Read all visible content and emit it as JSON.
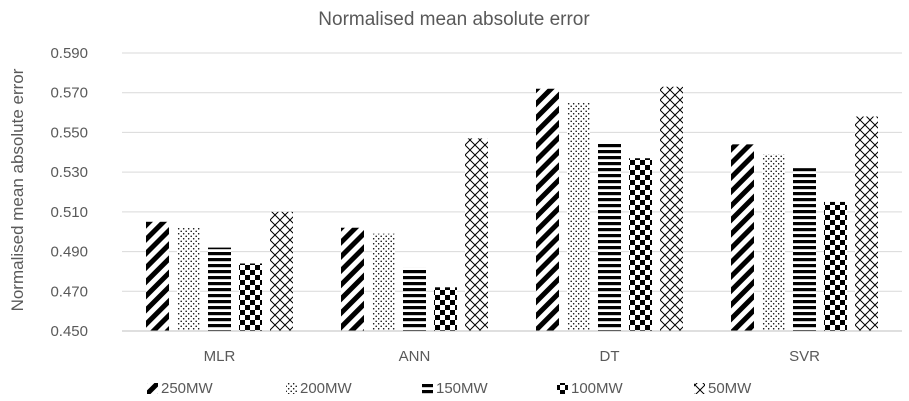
{
  "chart_data": {
    "type": "bar",
    "title": "Normalised mean absolute error",
    "xlabel": "",
    "ylabel": "Normalised mean absolute error",
    "ylim": [
      0.45,
      0.59
    ],
    "yticks": [
      "0.450",
      "0.470",
      "0.490",
      "0.510",
      "0.530",
      "0.550",
      "0.570",
      "0.590"
    ],
    "grid": true,
    "legend_position": "bottom",
    "categories": [
      "MLR",
      "ANN",
      "DT",
      "SVR"
    ],
    "series": [
      {
        "name": "250MW",
        "pattern": "diagonal-stripes",
        "values": [
          0.505,
          0.502,
          0.572,
          0.544
        ]
      },
      {
        "name": "200MW",
        "pattern": "dots",
        "values": [
          0.502,
          0.499,
          0.565,
          0.539
        ]
      },
      {
        "name": "150MW",
        "pattern": "horizontal-stripes",
        "values": [
          0.492,
          0.482,
          0.545,
          0.532
        ]
      },
      {
        "name": "100MW",
        "pattern": "checkerboard",
        "values": [
          0.484,
          0.472,
          0.537,
          0.515
        ]
      },
      {
        "name": "50MW",
        "pattern": "crosshatch",
        "values": [
          0.51,
          0.547,
          0.573,
          0.558
        ]
      }
    ],
    "colors": {
      "bar_ink": "#000000",
      "gridline": "#d9d9d9",
      "text": "#595959"
    }
  }
}
